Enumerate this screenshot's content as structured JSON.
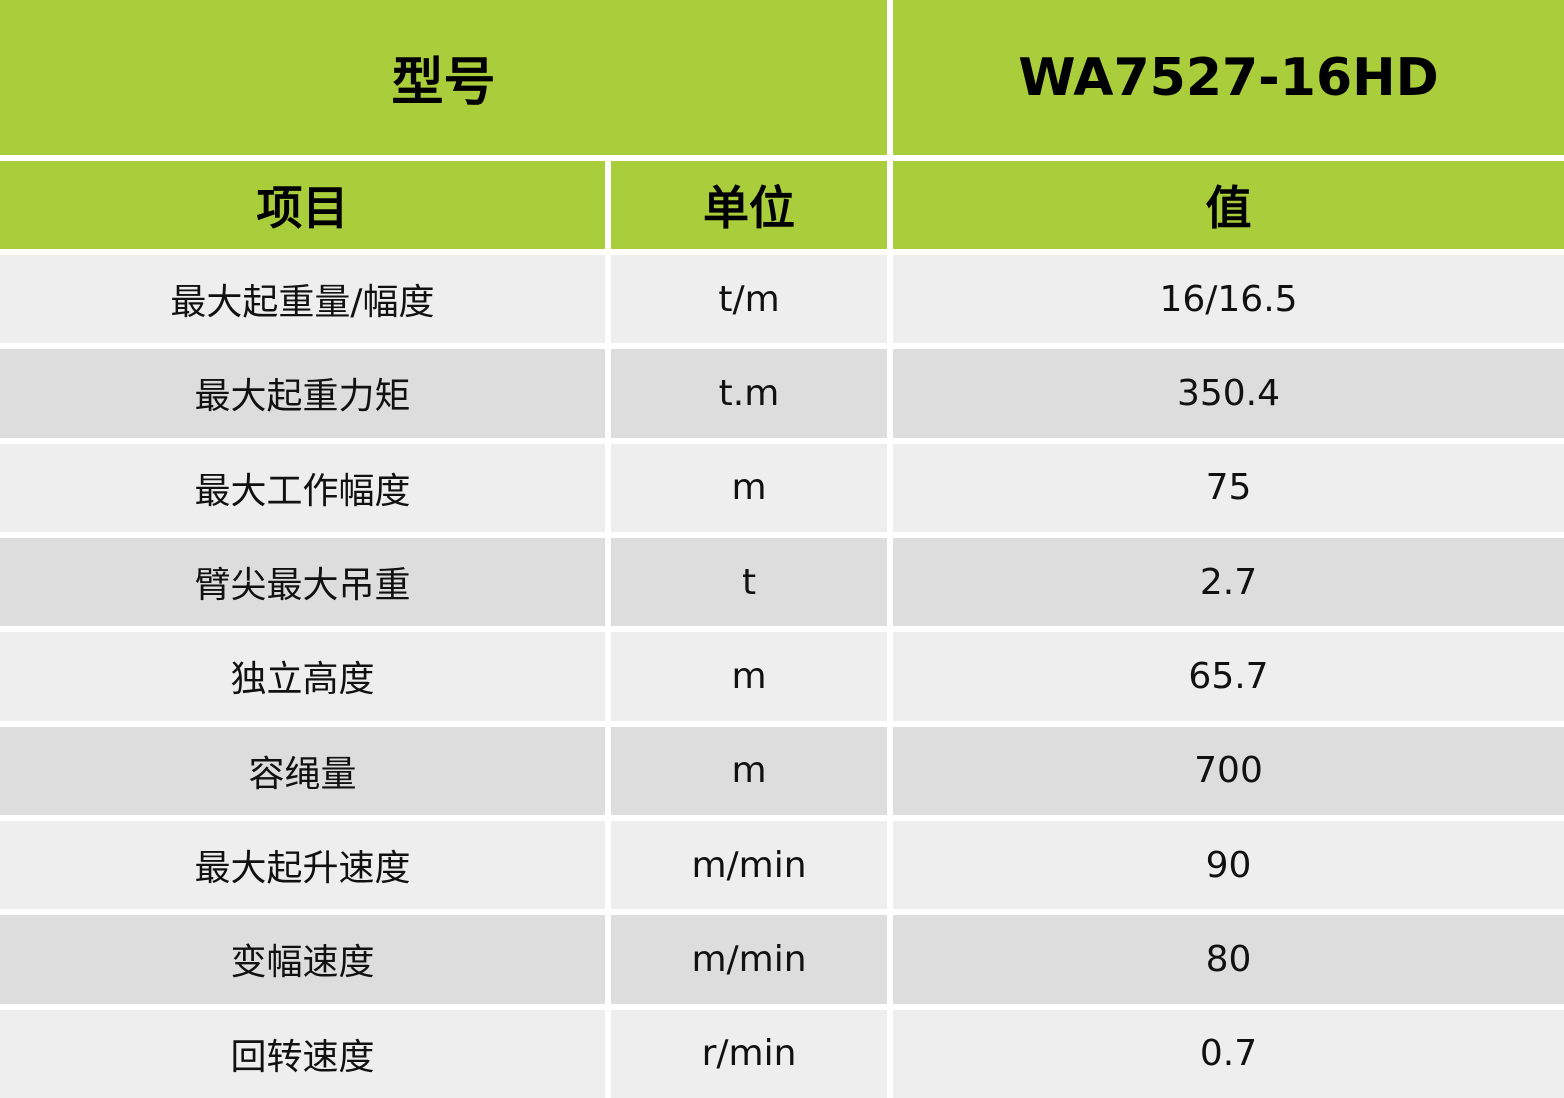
{
  "header": {
    "model_label": "型号",
    "model_value": "WA7527-16HD"
  },
  "columns": {
    "item": "项目",
    "unit": "单位",
    "value": "值"
  },
  "colors": {
    "header_green": "#aacd3b",
    "row_light": "#eeeeee",
    "row_dark": "#dddddd"
  },
  "rows": [
    {
      "item": "最大起重量/幅度",
      "unit": "t/m",
      "value": "16/16.5"
    },
    {
      "item": "最大起重力矩",
      "unit": "t.m",
      "value": "350.4"
    },
    {
      "item": "最大工作幅度",
      "unit": "m",
      "value": "75"
    },
    {
      "item": "臂尖最大吊重",
      "unit": "t",
      "value": "2.7"
    },
    {
      "item": "独立高度",
      "unit": "m",
      "value": "65.7"
    },
    {
      "item": "容绳量",
      "unit": "m",
      "value": "700"
    },
    {
      "item": "最大起升速度",
      "unit": "m/min",
      "value": "90"
    },
    {
      "item": "变幅速度",
      "unit": "m/min",
      "value": "80"
    },
    {
      "item": "回转速度",
      "unit": "r/min",
      "value": "0.7"
    }
  ]
}
